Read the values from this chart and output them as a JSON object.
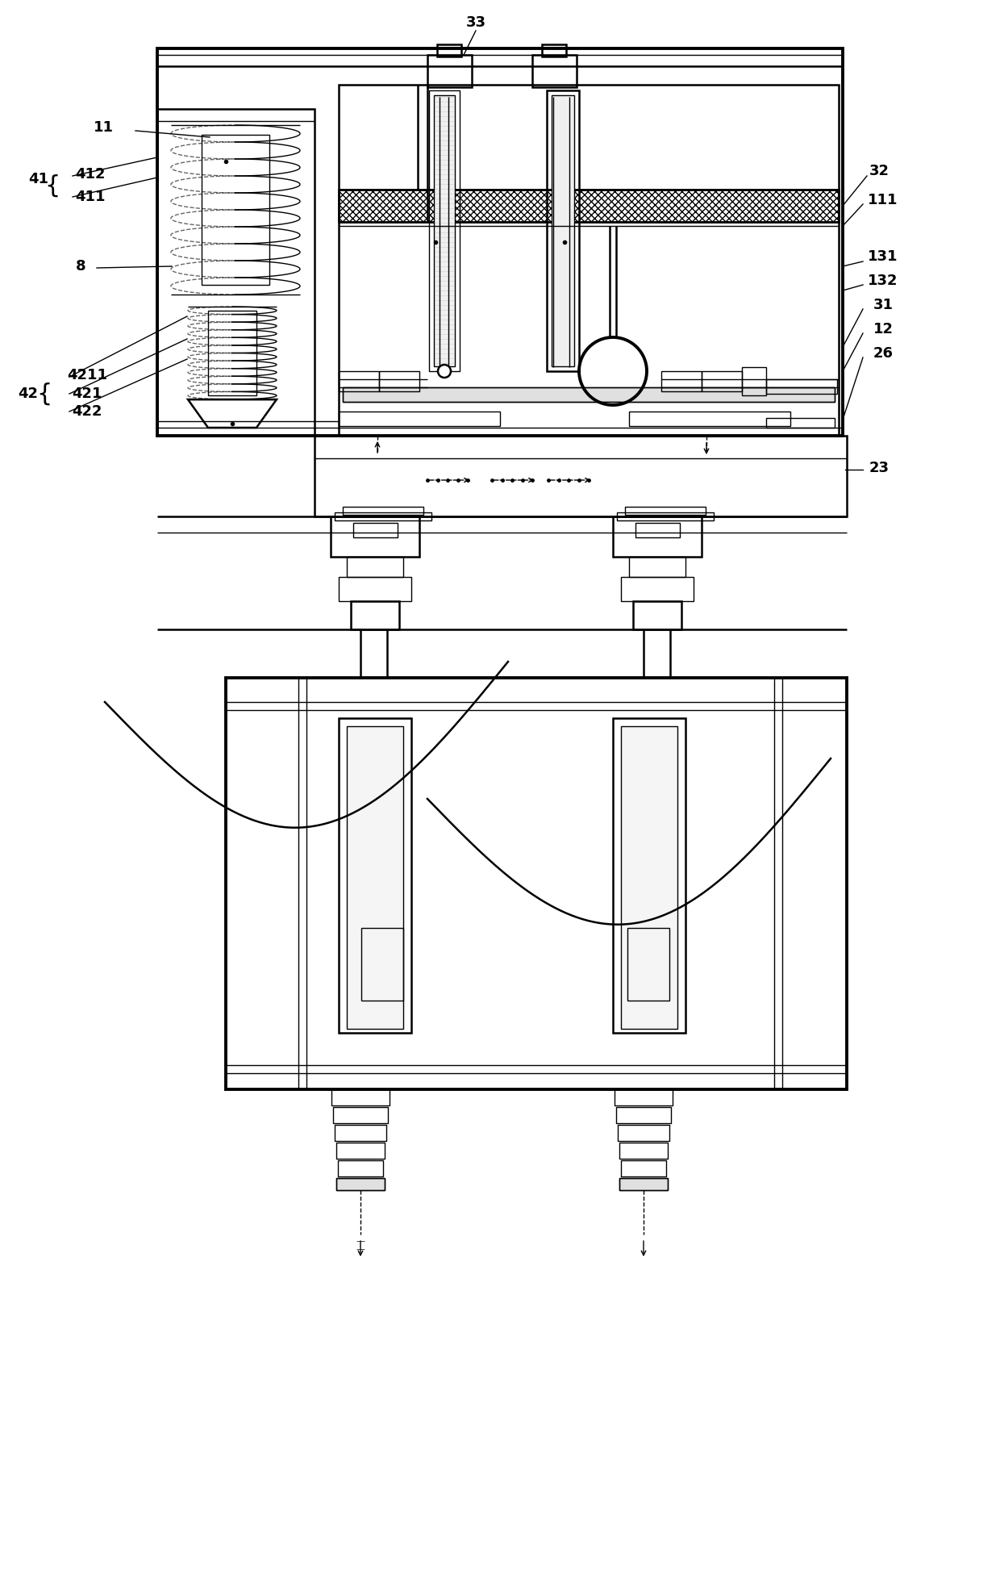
{
  "bg": "#ffffff",
  "lc": "#000000",
  "fig_w": 12.4,
  "fig_h": 19.68,
  "dpi": 100,
  "lw1": 1.0,
  "lw2": 1.8,
  "lw3": 2.8,
  "fs": 13,
  "bfs": 22
}
